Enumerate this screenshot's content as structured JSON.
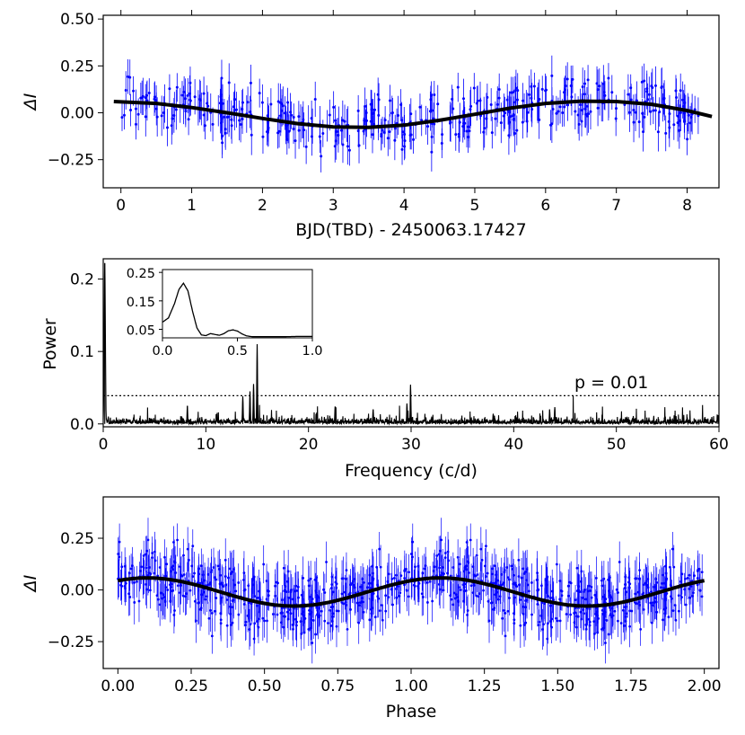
{
  "chart_data": [
    {
      "type": "scatter",
      "panel": "light-curve",
      "xlabel": "BJD(TBD) - 2450063.17427",
      "ylabel": "ΔI",
      "xlim": [
        -0.25,
        8.45
      ],
      "ylim": [
        -0.4,
        0.52
      ],
      "xticks": [
        0,
        1,
        2,
        3,
        4,
        5,
        6,
        7,
        8
      ],
      "xtick_labels": [
        "0",
        "1",
        "2",
        "3",
        "4",
        "5",
        "6",
        "7",
        "8"
      ],
      "yticks": [
        0.5,
        0.25,
        0.0,
        -0.25
      ],
      "ytick_labels": [
        "0.50",
        "0.25",
        "0.00",
        "−0.25"
      ],
      "series": [
        {
          "name": "observations",
          "kind": "points-with-errorbars",
          "color": "#0000ff",
          "x_range": [
            0.0,
            8.2
          ],
          "n_points": 430,
          "y_scatter": 0.09,
          "error_bar": 0.09
        },
        {
          "name": "sinusoid fit",
          "kind": "line",
          "color": "#000000",
          "x": [
            -0.1,
            0.5,
            1.0,
            1.5,
            2.0,
            2.5,
            3.0,
            3.5,
            4.0,
            4.5,
            5.0,
            5.5,
            6.0,
            6.5,
            7.0,
            7.5,
            8.0,
            8.35
          ],
          "y": [
            0.06,
            0.05,
            0.028,
            0.0,
            -0.03,
            -0.058,
            -0.075,
            -0.078,
            -0.066,
            -0.04,
            -0.008,
            0.025,
            0.05,
            0.062,
            0.06,
            0.045,
            0.012,
            -0.02
          ]
        }
      ]
    },
    {
      "type": "line",
      "panel": "periodogram",
      "xlabel": "Frequency (c/d)",
      "ylabel": "Power",
      "xlim": [
        0,
        60
      ],
      "ylim": [
        -0.004,
        0.228
      ],
      "xticks": [
        0,
        10,
        20,
        30,
        40,
        50,
        60
      ],
      "xtick_labels": [
        "0",
        "10",
        "20",
        "30",
        "40",
        "50",
        "60"
      ],
      "yticks": [
        0.0,
        0.1,
        0.2
      ],
      "ytick_labels": [
        "0.0",
        "0.1",
        "0.2"
      ],
      "threshold": {
        "value": 0.039,
        "label": "p = 0.01",
        "style": "dotted"
      },
      "peaks": [
        {
          "f": 0.15,
          "power": 0.222
        },
        {
          "f": 15.0,
          "power": 0.11
        },
        {
          "f": 14.65,
          "power": 0.055
        },
        {
          "f": 14.3,
          "power": 0.045
        },
        {
          "f": 13.6,
          "power": 0.038
        },
        {
          "f": 29.95,
          "power": 0.054
        },
        {
          "f": 29.6,
          "power": 0.028
        },
        {
          "f": 8.2,
          "power": 0.025
        },
        {
          "f": 22.6,
          "power": 0.024
        },
        {
          "f": 26.3,
          "power": 0.02
        },
        {
          "f": 44.0,
          "power": 0.023
        },
        {
          "f": 43.5,
          "power": 0.02
        },
        {
          "f": 38.0,
          "power": 0.014
        },
        {
          "f": 59.9,
          "power": 0.012
        }
      ],
      "noise_level": 0.006
    },
    {
      "type": "line",
      "panel": "periodogram-inset",
      "xlim": [
        0,
        1.0
      ],
      "ylim": [
        0.02,
        0.26
      ],
      "xticks": [
        0.0,
        0.5,
        1.0
      ],
      "xtick_labels": [
        "0.0",
        "0.5",
        "1.0"
      ],
      "yticks": [
        0.25,
        0.15,
        0.05
      ],
      "ytick_labels": [
        "0.25",
        "0.15",
        "0.05"
      ],
      "x": [
        0.0,
        0.04,
        0.08,
        0.11,
        0.14,
        0.17,
        0.2,
        0.23,
        0.26,
        0.29,
        0.32,
        0.35,
        0.38,
        0.41,
        0.44,
        0.47,
        0.5,
        0.53,
        0.56,
        0.6,
        0.7,
        0.8,
        0.9,
        1.0
      ],
      "y": [
        0.075,
        0.09,
        0.14,
        0.19,
        0.212,
        0.185,
        0.115,
        0.055,
        0.03,
        0.028,
        0.035,
        0.032,
        0.029,
        0.035,
        0.045,
        0.048,
        0.044,
        0.034,
        0.027,
        0.024,
        0.024,
        0.024,
        0.025,
        0.025
      ]
    },
    {
      "type": "scatter",
      "panel": "phase-folded",
      "xlabel": "Phase",
      "ylabel": "ΔI",
      "xlim": [
        -0.05,
        2.05
      ],
      "ylim": [
        -0.38,
        0.45
      ],
      "xticks": [
        0.0,
        0.25,
        0.5,
        0.75,
        1.0,
        1.25,
        1.5,
        1.75,
        2.0
      ],
      "xtick_labels": [
        "0.00",
        "0.25",
        "0.50",
        "0.75",
        "1.00",
        "1.25",
        "1.50",
        "1.75",
        "2.00"
      ],
      "yticks": [
        0.25,
        0.0,
        -0.25
      ],
      "ytick_labels": [
        "0.25",
        "0.00",
        "−0.25"
      ],
      "series": [
        {
          "name": "observations (folded, shown twice)",
          "kind": "points-with-errorbars",
          "color": "#0000ff",
          "x_range": [
            0.0,
            2.0
          ],
          "n_points": 860,
          "y_scatter": 0.09,
          "error_bar": 0.09
        },
        {
          "name": "sinusoid fit",
          "kind": "line",
          "color": "#000000",
          "mean": -0.01,
          "amplitude": 0.068,
          "phase_of_max": 0.1
        }
      ]
    }
  ]
}
